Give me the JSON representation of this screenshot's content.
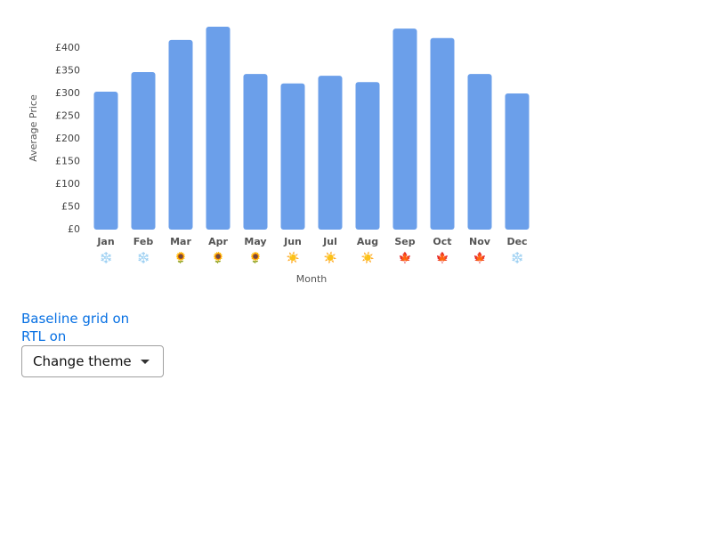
{
  "chart_data": {
    "type": "bar",
    "y_label": "Average Price",
    "x_label": "Month",
    "categories": [
      "Jan",
      "Feb",
      "Mar",
      "Apr",
      "May",
      "Jun",
      "Jul",
      "Aug",
      "Sep",
      "Oct",
      "Nov",
      "Dec"
    ],
    "category_icons": [
      "❄️",
      "❄️",
      "🌻",
      "🌻",
      "🌻",
      "☀️",
      "☀️",
      "☀️",
      "🍁",
      "🍁",
      "🍁",
      "❄️"
    ],
    "values": [
      304,
      347,
      418,
      447,
      343,
      322,
      339,
      325,
      443,
      422,
      343,
      300
    ],
    "color": "#6b9fea",
    "ylim": [
      0,
      450
    ],
    "yticks": [
      {
        "value": 0,
        "label": "£0"
      },
      {
        "value": 50,
        "label": "£50"
      },
      {
        "value": 100,
        "label": "£100"
      },
      {
        "value": 150,
        "label": "£150"
      },
      {
        "value": 200,
        "label": "£200"
      },
      {
        "value": 250,
        "label": "£250"
      },
      {
        "value": 300,
        "label": "£300"
      },
      {
        "value": 350,
        "label": "£350"
      },
      {
        "value": 400,
        "label": "£400"
      }
    ],
    "grid": false
  },
  "controls": {
    "baseline_grid": "Baseline grid on",
    "rtl": "RTL on",
    "theme_select": "Change theme"
  }
}
